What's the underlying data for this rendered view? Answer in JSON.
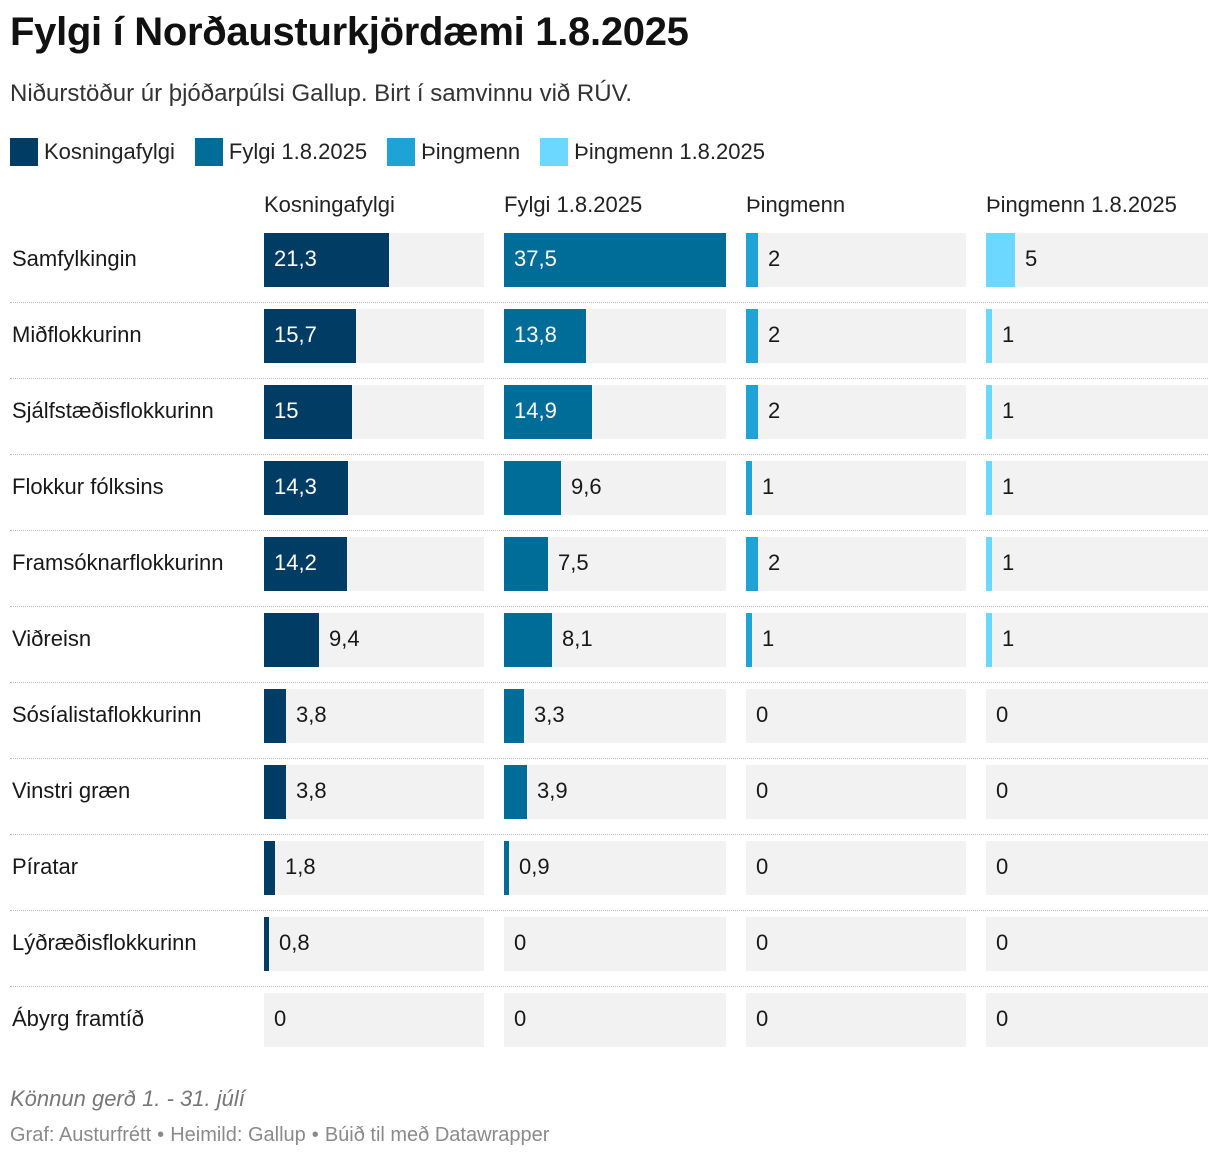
{
  "title": "Fylgi í Norðausturkjördæmi 1.8.2025",
  "subtitle": "Niðurstöður úr þjóðarpúlsi Gallup. Birt í samvinnu við RÚV.",
  "colors": {
    "kosningafylgi": "#003c64",
    "fylgi": "#006d99",
    "thingmenn": "#1fa2d4",
    "thingmenn_new": "#6dd8ff",
    "track": "#f2f2f2",
    "label_dark_text": "#181818",
    "label_light_text": "#ffffff"
  },
  "legend": [
    {
      "label": "Kosningafylgi",
      "color": "#003c64"
    },
    {
      "label": "Fylgi 1.8.2025",
      "color": "#006d99"
    },
    {
      "label": "Þingmenn",
      "color": "#1fa2d4"
    },
    {
      "label": "Þingmenn 1.8.2025",
      "color": "#6dd8ff"
    }
  ],
  "chart_data": {
    "type": "bar",
    "subtype": "multi-column horizontal bars",
    "title": "Fylgi í Norðausturkjördæmi 1.8.2025",
    "categories": [
      "Samfylkingin",
      "Miðflokkurinn",
      "Sjálfstæðisflokkurinn",
      "Flokkur fólksins",
      "Framsóknarflokkurinn",
      "Viðreisn",
      "Sósíalistaflokkurinn",
      "Vinstri græn",
      "Píratar",
      "Lýðræðisflokkurinn",
      "Ábyrg framtíð"
    ],
    "series": [
      {
        "name": "Kosningafylgi",
        "color": "#003c64",
        "max": 37.5,
        "values": [
          21.3,
          15.7,
          15,
          14.3,
          14.2,
          9.4,
          3.8,
          3.8,
          1.8,
          0.8,
          0
        ],
        "labels": [
          "21,3",
          "15,7",
          "15",
          "14,3",
          "14,2",
          "9,4",
          "3,8",
          "3,8",
          "1,8",
          "0,8",
          "0"
        ]
      },
      {
        "name": "Fylgi 1.8.2025",
        "color": "#006d99",
        "max": 37.5,
        "values": [
          37.5,
          13.8,
          14.9,
          9.6,
          7.5,
          8.1,
          3.3,
          3.9,
          0.9,
          0,
          0
        ],
        "labels": [
          "37,5",
          "13,8",
          "14,9",
          "9,6",
          "7,5",
          "8,1",
          "3,3",
          "3,9",
          "0,9",
          "0",
          "0"
        ]
      },
      {
        "name": "Þingmenn",
        "color": "#1fa2d4",
        "max": 38,
        "values": [
          2,
          2,
          2,
          1,
          2,
          1,
          0,
          0,
          0,
          0,
          0
        ],
        "labels": [
          "2",
          "2",
          "2",
          "1",
          "2",
          "1",
          "0",
          "0",
          "0",
          "0",
          "0"
        ]
      },
      {
        "name": "Þingmenn 1.8.2025",
        "color": "#6dd8ff",
        "max": 38,
        "values": [
          5,
          1,
          1,
          1,
          1,
          1,
          0,
          0,
          0,
          0,
          0
        ],
        "labels": [
          "5",
          "1",
          "1",
          "1",
          "1",
          "1",
          "0",
          "0",
          "0",
          "0",
          "0"
        ]
      }
    ]
  },
  "notes": "Könnun gerð 1. - 31. júlí",
  "footer": {
    "graf": "Graf: Austurfrétt",
    "source": "Heimild: Gallup",
    "made_with": "Búið til með Datawrapper",
    "separator": "•"
  }
}
